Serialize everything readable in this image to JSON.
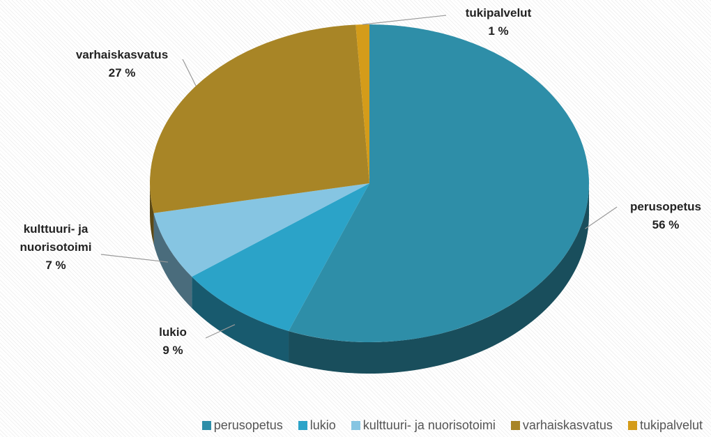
{
  "chart_data": {
    "type": "pie3d",
    "categories": [
      "perusopetus",
      "lukio",
      "kulttuuri- ja nuorisotoimi",
      "varhaiskasvatus",
      "tukipalvelut"
    ],
    "values": [
      56,
      9,
      7,
      27,
      1
    ],
    "value_labels": [
      "56 %",
      "9 %",
      "7 %",
      "27 %",
      "1 %"
    ],
    "colors": [
      "#2e8ea8",
      "#2ba3c8",
      "#86c5e2",
      "#a88526",
      "#d49c1a"
    ],
    "legend": "bottom"
  }
}
